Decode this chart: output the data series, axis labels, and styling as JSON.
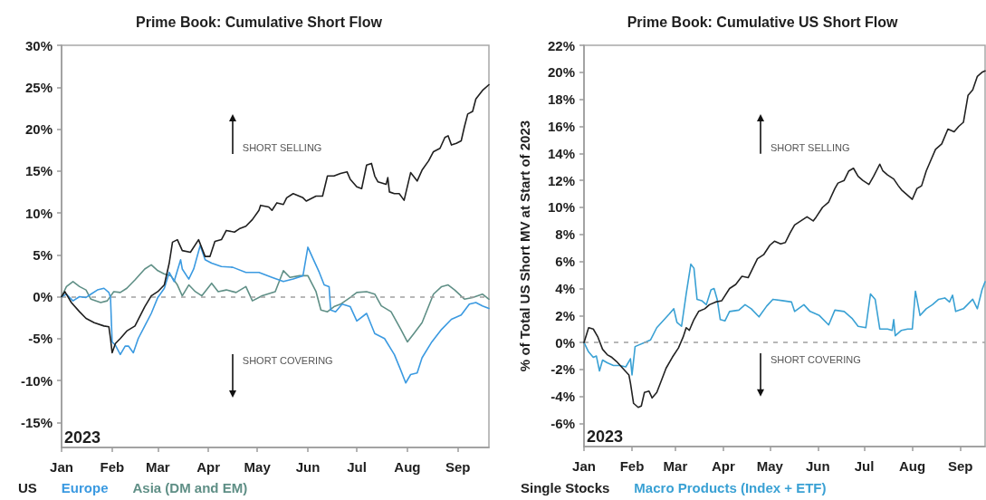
{
  "chart_data": [
    {
      "type": "line",
      "title": "Prime Book: Cumulative Short Flow",
      "xlim": [
        "2023-01-01",
        "2023-09-20"
      ],
      "xticks": [
        {
          "value": "2023-01-01",
          "label": "Jan"
        },
        {
          "value": "2023-02-01",
          "label": "Feb"
        },
        {
          "value": "2023-03-01",
          "label": "Mar"
        },
        {
          "value": "2023-04-01",
          "label": "Apr"
        },
        {
          "value": "2023-05-01",
          "label": "May"
        },
        {
          "value": "2023-06-01",
          "label": "Jun"
        },
        {
          "value": "2023-07-01",
          "label": "Jul"
        },
        {
          "value": "2023-08-01",
          "label": "Aug"
        },
        {
          "value": "2023-09-01",
          "label": "Sep"
        }
      ],
      "ylim": [
        -18,
        30
      ],
      "yticks": [
        {
          "value": -15,
          "label": "-15%"
        },
        {
          "value": -10,
          "label": "-10%"
        },
        {
          "value": -5,
          "label": "-5%"
        },
        {
          "value": 0,
          "label": "0%"
        },
        {
          "value": 5,
          "label": "5%"
        },
        {
          "value": 10,
          "label": "10%"
        },
        {
          "value": 15,
          "label": "15%"
        },
        {
          "value": 20,
          "label": "20%"
        },
        {
          "value": 25,
          "label": "25%"
        },
        {
          "value": 30,
          "label": "30%"
        }
      ],
      "ref_lines": [
        {
          "axis": "y",
          "value": 0,
          "color": "#a0a0a0",
          "line_style": "dashed"
        }
      ],
      "annotations": [
        "SHORT SELLING",
        "SHORT COVERING",
        "2023"
      ],
      "legend": "bottom left",
      "series": [
        {
          "name": "US",
          "color": "#1f1f1f",
          "x": [
            "2023-01-01",
            "2023-01-03",
            "2023-01-07",
            "2023-01-12",
            "2023-01-16",
            "2023-01-21",
            "2023-01-27",
            "2023-01-30",
            "2023-01-31",
            "2023-02-01",
            "2023-02-03",
            "2023-02-06",
            "2023-02-10",
            "2023-02-15",
            "2023-02-21",
            "2023-02-25",
            "2023-03-01",
            "2023-03-05",
            "2023-03-08",
            "2023-03-10",
            "2023-03-13",
            "2023-03-16",
            "2023-03-21",
            "2023-03-26",
            "2023-03-30",
            "2023-04-02",
            "2023-04-05",
            "2023-04-09",
            "2023-04-12",
            "2023-04-17",
            "2023-04-20",
            "2023-04-24",
            "2023-04-28",
            "2023-05-02",
            "2023-05-03",
            "2023-05-08",
            "2023-05-10",
            "2023-05-13",
            "2023-05-17",
            "2023-05-19",
            "2023-05-23",
            "2023-05-29",
            "2023-05-31",
            "2023-06-06",
            "2023-06-10",
            "2023-06-13",
            "2023-06-17",
            "2023-06-21",
            "2023-06-25",
            "2023-06-27",
            "2023-07-01",
            "2023-07-04",
            "2023-07-07",
            "2023-07-10",
            "2023-07-12",
            "2023-07-14",
            "2023-07-19",
            "2023-07-20",
            "2023-07-21",
            "2023-07-24",
            "2023-07-27",
            "2023-07-30",
            "2023-08-03",
            "2023-08-07",
            "2023-08-10",
            "2023-08-14",
            "2023-08-17",
            "2023-08-21",
            "2023-08-24",
            "2023-08-26",
            "2023-08-28",
            "2023-08-31",
            "2023-09-03",
            "2023-09-05",
            "2023-09-07",
            "2023-09-10",
            "2023-09-12",
            "2023-09-16",
            "2023-09-20"
          ],
          "values": [
            0,
            0.6,
            -0.7,
            -1.8,
            -2.6,
            -3.1,
            -3.5,
            -3.6,
            -5.0,
            -6.7,
            -5.6,
            -5.0,
            -4.1,
            -3.5,
            -1.2,
            0.1,
            0.6,
            1.4,
            4.0,
            6.5,
            6.8,
            5.5,
            5.3,
            6.8,
            4.8,
            4.8,
            6.6,
            6.8,
            7.9,
            7.7,
            8.1,
            8.4,
            9.2,
            10.3,
            10.9,
            10.7,
            10.3,
            11.2,
            11.0,
            11.8,
            12.3,
            11.8,
            11.4,
            12.0,
            12.0,
            14.4,
            14.4,
            14.7,
            14.9,
            14.0,
            13.1,
            12.9,
            15.7,
            15.9,
            14.4,
            13.7,
            13.4,
            14.2,
            12.5,
            12.3,
            12.3,
            11.5,
            14.8,
            13.8,
            15.1,
            16.2,
            17.3,
            17.7,
            19.0,
            19.2,
            18.1,
            18.3,
            18.6,
            20.3,
            21.8,
            22.1,
            23.6,
            24.6,
            25.3
          ]
        },
        {
          "name": "Europe",
          "color": "#3b9ae1",
          "x": [
            "2023-01-01",
            "2023-01-04",
            "2023-01-08",
            "2023-01-12",
            "2023-01-16",
            "2023-01-19",
            "2023-01-23",
            "2023-01-27",
            "2023-01-30",
            "2023-01-31",
            "2023-02-01",
            "2023-02-03",
            "2023-02-06",
            "2023-02-09",
            "2023-02-11",
            "2023-02-14",
            "2023-02-17",
            "2023-02-21",
            "2023-02-25",
            "2023-03-01",
            "2023-03-05",
            "2023-03-08",
            "2023-03-11",
            "2023-03-15",
            "2023-03-16",
            "2023-03-20",
            "2023-03-23",
            "2023-03-27",
            "2023-03-30",
            "2023-04-03",
            "2023-04-09",
            "2023-04-16",
            "2023-04-24",
            "2023-05-02",
            "2023-05-10",
            "2023-05-17",
            "2023-05-23",
            "2023-05-29",
            "2023-06-01",
            "2023-06-04",
            "2023-06-08",
            "2023-06-11",
            "2023-06-14",
            "2023-06-15",
            "2023-06-18",
            "2023-06-22",
            "2023-06-27",
            "2023-07-01",
            "2023-07-07",
            "2023-07-12",
            "2023-07-18",
            "2023-07-24",
            "2023-07-28",
            "2023-07-31",
            "2023-08-03",
            "2023-08-07",
            "2023-08-10",
            "2023-08-16",
            "2023-08-22",
            "2023-08-28",
            "2023-09-03",
            "2023-09-08",
            "2023-09-12",
            "2023-09-16",
            "2023-09-20"
          ],
          "values": [
            0,
            0.3,
            -0.5,
            0,
            -0.1,
            0.3,
            0.8,
            1.0,
            0.5,
            -0.1,
            -5.4,
            -5.8,
            -6.9,
            -5.9,
            -5.9,
            -6.7,
            -5.0,
            -3.5,
            -2.0,
            -0.1,
            1.0,
            2.9,
            1.8,
            4.4,
            3.3,
            2.1,
            3.3,
            6.1,
            4.4,
            4.0,
            3.6,
            3.5,
            2.9,
            2.9,
            2.3,
            1.8,
            2.1,
            2.5,
            5.9,
            4.6,
            2.9,
            1.4,
            1.2,
            -1.6,
            -1.8,
            -0.9,
            -1.2,
            -2.9,
            -2.0,
            -4.4,
            -5.0,
            -6.9,
            -8.8,
            -10.3,
            -9.3,
            -9.1,
            -7.3,
            -5.4,
            -3.9,
            -2.7,
            -2.2,
            -0.9,
            -0.7,
            -1.1,
            -1.4
          ]
        },
        {
          "name": "Asia (DM and EM)",
          "color": "#5f8f86",
          "x": [
            "2023-01-01",
            "2023-01-04",
            "2023-01-08",
            "2023-01-12",
            "2023-01-16",
            "2023-01-19",
            "2023-01-25",
            "2023-01-29",
            "2023-02-02",
            "2023-02-06",
            "2023-02-10",
            "2023-02-15",
            "2023-02-21",
            "2023-02-25",
            "2023-03-01",
            "2023-03-05",
            "2023-03-09",
            "2023-03-13",
            "2023-03-16",
            "2023-03-20",
            "2023-03-24",
            "2023-03-28",
            "2023-04-03",
            "2023-04-07",
            "2023-04-12",
            "2023-04-18",
            "2023-04-24",
            "2023-04-28",
            "2023-05-04",
            "2023-05-12",
            "2023-05-17",
            "2023-05-21",
            "2023-05-27",
            "2023-06-01",
            "2023-06-06",
            "2023-06-09",
            "2023-06-13",
            "2023-06-17",
            "2023-06-21",
            "2023-06-27",
            "2023-07-01",
            "2023-07-07",
            "2023-07-12",
            "2023-07-16",
            "2023-07-22",
            "2023-07-28",
            "2023-08-01",
            "2023-08-05",
            "2023-08-10",
            "2023-08-17",
            "2023-08-22",
            "2023-08-26",
            "2023-08-30",
            "2023-09-05",
            "2023-09-10",
            "2023-09-16",
            "2023-09-20"
          ],
          "values": [
            0,
            1.2,
            1.8,
            1.2,
            0.8,
            -0.3,
            -0.7,
            -0.5,
            0.6,
            0.5,
            1.0,
            2.0,
            3.3,
            3.8,
            3.1,
            2.7,
            2.5,
            1.4,
            0.1,
            1.4,
            0.6,
            0.1,
            1.6,
            0.6,
            0.8,
            0.5,
            1.2,
            -0.5,
            0.1,
            0.6,
            3.1,
            2.3,
            2.5,
            2.5,
            0.6,
            -1.6,
            -1.8,
            -1.2,
            -0.9,
            -0.1,
            0.5,
            0.6,
            0.3,
            -1.1,
            -1.8,
            -3.9,
            -5.4,
            -4.4,
            -3.1,
            0.3,
            1.2,
            1.4,
            0.8,
            -0.3,
            -0.1,
            0.3,
            -0.3
          ]
        }
      ]
    },
    {
      "type": "line",
      "title": "Prime Book: Cumulative US Short Flow",
      "ylabel": "% of Total US Short MV at Start of 2023",
      "xlim": [
        "2023-01-01",
        "2023-09-17"
      ],
      "xticks": [
        {
          "value": "2023-01-01",
          "label": "Jan"
        },
        {
          "value": "2023-02-01",
          "label": "Feb"
        },
        {
          "value": "2023-03-01",
          "label": "Mar"
        },
        {
          "value": "2023-04-01",
          "label": "Apr"
        },
        {
          "value": "2023-05-01",
          "label": "May"
        },
        {
          "value": "2023-06-01",
          "label": "Jun"
        },
        {
          "value": "2023-07-01",
          "label": "Jul"
        },
        {
          "value": "2023-08-01",
          "label": "Aug"
        },
        {
          "value": "2023-09-01",
          "label": "Sep"
        }
      ],
      "ylim": [
        -7.7,
        22
      ],
      "yticks": [
        {
          "value": -6,
          "label": "-6%"
        },
        {
          "value": -4,
          "label": "-4%"
        },
        {
          "value": -2,
          "label": "-2%"
        },
        {
          "value": 0,
          "label": "0%"
        },
        {
          "value": 2,
          "label": "2%"
        },
        {
          "value": 4,
          "label": "4%"
        },
        {
          "value": 6,
          "label": "6%"
        },
        {
          "value": 8,
          "label": "8%"
        },
        {
          "value": 10,
          "label": "10%"
        },
        {
          "value": 12,
          "label": "12%"
        },
        {
          "value": 14,
          "label": "14%"
        },
        {
          "value": 16,
          "label": "16%"
        },
        {
          "value": 18,
          "label": "18%"
        },
        {
          "value": 20,
          "label": "20%"
        },
        {
          "value": 22,
          "label": "22%"
        }
      ],
      "ref_lines": [
        {
          "axis": "y",
          "value": 0,
          "color": "#a0a0a0",
          "line_style": "dashed"
        }
      ],
      "annotations": [
        "SHORT SELLING",
        "SHORT COVERING",
        "2023"
      ],
      "legend": "bottom left",
      "series": [
        {
          "name": "Single Stocks",
          "color": "#222222",
          "x": [
            "2023-01-01",
            "2023-01-04",
            "2023-01-07",
            "2023-01-10",
            "2023-01-13",
            "2023-01-16",
            "2023-01-19",
            "2023-01-22",
            "2023-01-26",
            "2023-01-30",
            "2023-01-31",
            "2023-02-02",
            "2023-02-05",
            "2023-02-07",
            "2023-02-09",
            "2023-02-12",
            "2023-02-14",
            "2023-02-17",
            "2023-02-20",
            "2023-02-23",
            "2023-02-27",
            "2023-03-03",
            "2023-03-06",
            "2023-03-08",
            "2023-03-10",
            "2023-03-13",
            "2023-03-16",
            "2023-03-20",
            "2023-03-23",
            "2023-03-27",
            "2023-03-31",
            "2023-04-05",
            "2023-04-09",
            "2023-04-13",
            "2023-04-17",
            "2023-04-20",
            "2023-04-23",
            "2023-04-27",
            "2023-05-01",
            "2023-05-04",
            "2023-05-08",
            "2023-05-11",
            "2023-05-14",
            "2023-05-17",
            "2023-05-21",
            "2023-05-25",
            "2023-05-29",
            "2023-05-31",
            "2023-06-04",
            "2023-06-08",
            "2023-06-12",
            "2023-06-14",
            "2023-06-18",
            "2023-06-21",
            "2023-06-24",
            "2023-06-27",
            "2023-06-30",
            "2023-07-04",
            "2023-07-07",
            "2023-07-11",
            "2023-07-13",
            "2023-07-16",
            "2023-07-20",
            "2023-07-23",
            "2023-07-25",
            "2023-07-28",
            "2023-08-01",
            "2023-08-04",
            "2023-08-07",
            "2023-08-10",
            "2023-08-13",
            "2023-08-16",
            "2023-08-20",
            "2023-08-24",
            "2023-08-28",
            "2023-08-31",
            "2023-09-03",
            "2023-09-06",
            "2023-09-09",
            "2023-09-12",
            "2023-09-15",
            "2023-09-17"
          ],
          "values": [
            0,
            1.1,
            1.0,
            0.4,
            -0.5,
            -0.9,
            -1.1,
            -1.4,
            -1.9,
            -2.4,
            -3.0,
            -4.5,
            -4.8,
            -4.7,
            -3.7,
            -3.6,
            -4.1,
            -3.7,
            -2.8,
            -1.9,
            -1.1,
            -0.4,
            0.4,
            1.1,
            0.9,
            1.7,
            2.3,
            2.5,
            2.8,
            3.0,
            3.1,
            4.0,
            4.3,
            4.9,
            4.8,
            5.5,
            6.2,
            6.5,
            7.2,
            7.5,
            7.3,
            7.4,
            8.1,
            8.7,
            9.0,
            9.3,
            9.0,
            9.3,
            10.0,
            10.4,
            11.4,
            11.8,
            12.0,
            12.7,
            12.9,
            12.3,
            12.0,
            11.7,
            12.3,
            13.2,
            12.7,
            12.4,
            12.1,
            11.6,
            11.3,
            11.0,
            10.6,
            11.4,
            11.6,
            12.7,
            13.5,
            14.3,
            14.7,
            15.8,
            15.6,
            16.0,
            16.3,
            18.3,
            18.7,
            19.7,
            20.0,
            20.1
          ]
        },
        {
          "name": "Macro Products (Index + ETF)",
          "color": "#3aa1d4",
          "x": [
            "2023-01-01",
            "2023-01-04",
            "2023-01-07",
            "2023-01-09",
            "2023-01-11",
            "2023-01-13",
            "2023-01-16",
            "2023-01-20",
            "2023-01-24",
            "2023-01-28",
            "2023-01-31",
            "2023-02-01",
            "2023-02-03",
            "2023-02-05",
            "2023-02-09",
            "2023-02-13",
            "2023-02-17",
            "2023-02-21",
            "2023-02-25",
            "2023-02-28",
            "2023-03-02",
            "2023-03-05",
            "2023-03-08",
            "2023-03-11",
            "2023-03-13",
            "2023-03-15",
            "2023-03-18",
            "2023-03-21",
            "2023-03-24",
            "2023-03-26",
            "2023-03-28",
            "2023-03-30",
            "2023-04-02",
            "2023-04-05",
            "2023-04-11",
            "2023-04-15",
            "2023-04-19",
            "2023-04-24",
            "2023-04-29",
            "2023-05-03",
            "2023-05-09",
            "2023-05-15",
            "2023-05-17",
            "2023-05-23",
            "2023-05-27",
            "2023-06-02",
            "2023-06-08",
            "2023-06-12",
            "2023-06-18",
            "2023-06-23",
            "2023-06-27",
            "2023-07-02",
            "2023-07-05",
            "2023-07-08",
            "2023-07-11",
            "2023-07-16",
            "2023-07-19",
            "2023-07-20",
            "2023-07-21",
            "2023-07-25",
            "2023-07-29",
            "2023-08-01",
            "2023-08-03",
            "2023-08-06",
            "2023-08-10",
            "2023-08-14",
            "2023-08-18",
            "2023-08-22",
            "2023-08-25",
            "2023-08-27",
            "2023-08-29",
            "2023-09-03",
            "2023-09-09",
            "2023-09-12",
            "2023-09-15",
            "2023-09-17"
          ],
          "values": [
            0,
            -0.7,
            -1.1,
            -1.0,
            -2.1,
            -1.3,
            -1.5,
            -1.7,
            -1.7,
            -1.8,
            -1.2,
            -2.4,
            -0.3,
            -0.2,
            0,
            0.2,
            1.1,
            1.6,
            2.1,
            2.5,
            1.5,
            1.2,
            3.6,
            5.8,
            5.5,
            3.2,
            3.1,
            2.8,
            3.9,
            4.0,
            3.2,
            1.7,
            1.6,
            2.3,
            2.4,
            2.8,
            2.5,
            1.9,
            2.7,
            3.2,
            3.1,
            3.0,
            2.3,
            2.8,
            2.3,
            2.0,
            1.3,
            2.4,
            2.3,
            1.8,
            1.2,
            1.1,
            3.6,
            3.2,
            1.0,
            1.0,
            0.9,
            1.7,
            0.5,
            0.9,
            1.0,
            1.0,
            3.8,
            2.0,
            2.5,
            2.8,
            3.2,
            3.3,
            3.0,
            3.5,
            2.3,
            2.5,
            3.2,
            2.5,
            3.9,
            4.5
          ]
        }
      ]
    }
  ]
}
